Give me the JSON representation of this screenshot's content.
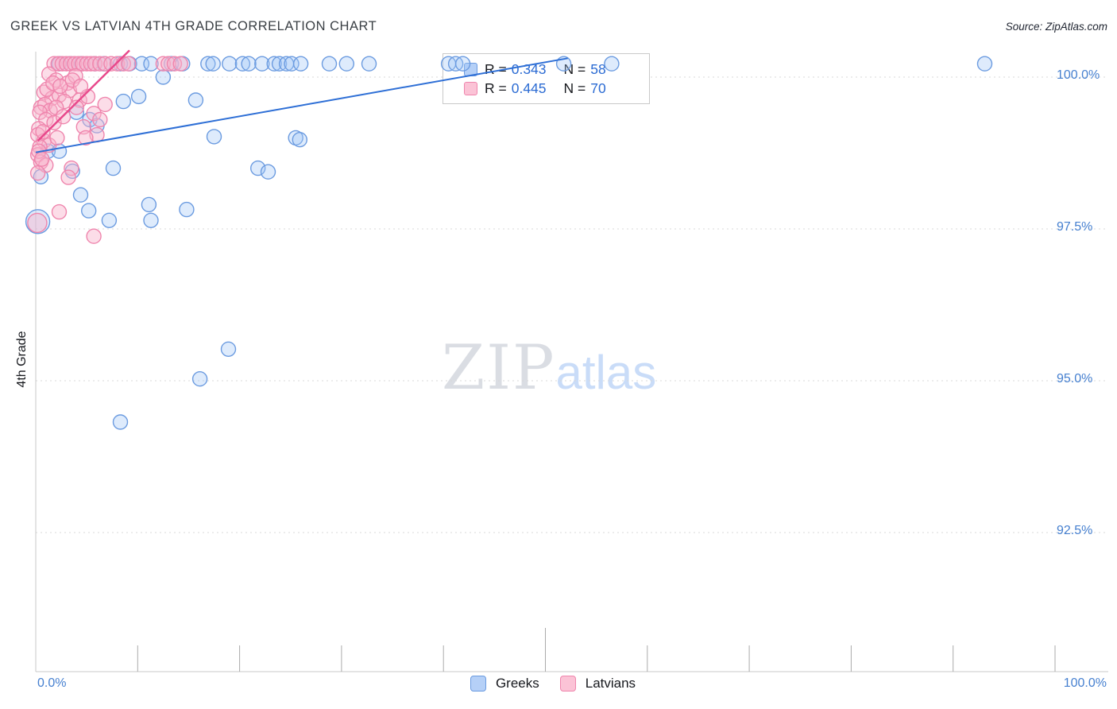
{
  "title": "GREEK VS LATVIAN 4TH GRADE CORRELATION CHART",
  "source": "Source: ZipAtlas.com",
  "y_axis_label": "4th Grade",
  "watermark": {
    "zip": "ZIP",
    "atlas": "atlas"
  },
  "x_axis": {
    "min_label": "0.0%",
    "max_label": "100.0%"
  },
  "y_ticks": [
    {
      "label": "100.0%",
      "value": 100.0
    },
    {
      "label": "97.5%",
      "value": 97.5
    },
    {
      "label": "95.0%",
      "value": 95.0
    },
    {
      "label": "92.5%",
      "value": 92.5
    }
  ],
  "legend_box": {
    "rows": [
      {
        "series": "Greeks",
        "r_label": "R = ",
        "r_value": "0.343",
        "n_label": "N = ",
        "n_value": "58"
      },
      {
        "series": "Latvians",
        "r_label": "R = ",
        "r_value": "0.445",
        "n_label": "N = ",
        "n_value": "70"
      }
    ]
  },
  "bottom_legend": [
    {
      "label": "Greeks"
    },
    {
      "label": "Latvians"
    }
  ],
  "colors": {
    "greek_stroke": "#6b9be0",
    "greek_fill": "rgba(161,197,245,0.35)",
    "greek_trend": "#2e6fd6",
    "latvian_stroke": "#ef85ad",
    "latvian_fill": "rgba(249,180,205,0.45)",
    "latvian_trend": "#e8498c",
    "axis": "#c8c8c8",
    "grid": "#d8d8d8",
    "tick": "#aaaaaa",
    "tick_label": "#4680d0"
  },
  "chart_data": {
    "type": "scatter",
    "title": "GREEK VS LATVIAN 4TH GRADE CORRELATION CHART",
    "xlabel": "",
    "ylabel": "4th Grade",
    "xlim": [
      0,
      105
    ],
    "ylim": [
      90.2,
      100.45
    ],
    "x_tick_values": [
      10,
      20,
      30,
      40,
      50,
      60,
      70,
      80,
      90,
      100
    ],
    "grid": "horizontal-dotted",
    "legend_position": "bottom-center",
    "series": [
      {
        "name": "Greeks",
        "R": 0.343,
        "N": 58,
        "points": [
          [
            2.3,
            100.22
          ],
          [
            3.4,
            100.22
          ],
          [
            4.5,
            100.22
          ],
          [
            5.8,
            100.22
          ],
          [
            6.7,
            100.22
          ],
          [
            8.3,
            100.22
          ],
          [
            9.2,
            100.22
          ],
          [
            10.4,
            100.22
          ],
          [
            11.3,
            100.22
          ],
          [
            13.3,
            100.22
          ],
          [
            14.4,
            100.22
          ],
          [
            16.9,
            100.22
          ],
          [
            17.4,
            100.22
          ],
          [
            19.0,
            100.22
          ],
          [
            20.3,
            100.22
          ],
          [
            20.9,
            100.22
          ],
          [
            22.2,
            100.22
          ],
          [
            23.4,
            100.22
          ],
          [
            23.9,
            100.22
          ],
          [
            24.6,
            100.22
          ],
          [
            25.1,
            100.22
          ],
          [
            26.0,
            100.22
          ],
          [
            28.8,
            100.22
          ],
          [
            30.5,
            100.22
          ],
          [
            32.7,
            100.22
          ],
          [
            40.5,
            100.22
          ],
          [
            41.2,
            100.22
          ],
          [
            41.9,
            100.22
          ],
          [
            51.8,
            100.22
          ],
          [
            56.5,
            100.22
          ],
          [
            93.1,
            100.22
          ],
          [
            12.5,
            100.0
          ],
          [
            15.7,
            99.62
          ],
          [
            4.0,
            99.42
          ],
          [
            5.3,
            99.3
          ],
          [
            6.0,
            99.2
          ],
          [
            8.6,
            99.6
          ],
          [
            10.1,
            99.68
          ],
          [
            17.5,
            99.02
          ],
          [
            25.5,
            99.0
          ],
          [
            25.9,
            98.97
          ],
          [
            1.2,
            98.78
          ],
          [
            2.3,
            98.78
          ],
          [
            7.6,
            98.5
          ],
          [
            3.6,
            98.45
          ],
          [
            21.8,
            98.5
          ],
          [
            22.8,
            98.44
          ],
          [
            0.5,
            98.36
          ],
          [
            4.4,
            98.06
          ],
          [
            5.2,
            97.8
          ],
          [
            11.1,
            97.9
          ],
          [
            11.3,
            97.64
          ],
          [
            7.2,
            97.64
          ],
          [
            14.8,
            97.82
          ],
          [
            0.2,
            97.62,
            15
          ],
          [
            18.9,
            95.52
          ],
          [
            16.1,
            95.03
          ],
          [
            8.3,
            94.32
          ]
        ],
        "trend_line": {
          "x1": 0,
          "y1": 98.76,
          "x2": 52.2,
          "y2": 100.31
        }
      },
      {
        "name": "Latvians",
        "R": 0.445,
        "N": 70,
        "points": [
          [
            1.8,
            100.22
          ],
          [
            2.2,
            100.22
          ],
          [
            2.6,
            100.22
          ],
          [
            3.0,
            100.22
          ],
          [
            3.4,
            100.22
          ],
          [
            3.8,
            100.22
          ],
          [
            4.2,
            100.22
          ],
          [
            4.6,
            100.22
          ],
          [
            5.0,
            100.22
          ],
          [
            5.4,
            100.22
          ],
          [
            5.8,
            100.22
          ],
          [
            6.3,
            100.22
          ],
          [
            6.8,
            100.22
          ],
          [
            7.4,
            100.22
          ],
          [
            8.0,
            100.22
          ],
          [
            8.6,
            100.22
          ],
          [
            9.1,
            100.22
          ],
          [
            12.5,
            100.22
          ],
          [
            13.0,
            100.22
          ],
          [
            13.6,
            100.22
          ],
          [
            14.2,
            100.22
          ],
          [
            1.3,
            100.05
          ],
          [
            2.0,
            99.95
          ],
          [
            3.1,
            99.9
          ],
          [
            3.9,
            100.02
          ],
          [
            0.8,
            99.75
          ],
          [
            1.6,
            99.65
          ],
          [
            2.3,
            99.7
          ],
          [
            3.3,
            99.78
          ],
          [
            4.3,
            99.62
          ],
          [
            5.1,
            99.68
          ],
          [
            1.1,
            99.8
          ],
          [
            1.7,
            99.9
          ],
          [
            2.4,
            99.85
          ],
          [
            2.8,
            99.6
          ],
          [
            3.6,
            99.95
          ],
          [
            4.4,
            99.85
          ],
          [
            0.5,
            99.5
          ],
          [
            0.9,
            99.55
          ],
          [
            1.4,
            99.45
          ],
          [
            2.0,
            99.5
          ],
          [
            4.0,
            99.5
          ],
          [
            6.8,
            99.55
          ],
          [
            0.4,
            99.42
          ],
          [
            1.0,
            99.3
          ],
          [
            1.8,
            99.25
          ],
          [
            2.7,
            99.35
          ],
          [
            4.7,
            99.18
          ],
          [
            5.7,
            99.4
          ],
          [
            6.3,
            99.3
          ],
          [
            0.3,
            99.15
          ],
          [
            0.2,
            99.05
          ],
          [
            0.8,
            98.95
          ],
          [
            1.3,
            98.88
          ],
          [
            2.1,
            99.0
          ],
          [
            0.4,
            98.85
          ],
          [
            6.0,
            99.05
          ],
          [
            0.7,
            99.1
          ],
          [
            4.9,
            99.0
          ],
          [
            0.2,
            98.72
          ],
          [
            0.5,
            98.6
          ],
          [
            1.0,
            98.55
          ],
          [
            3.5,
            98.5
          ],
          [
            0.3,
            98.78
          ],
          [
            0.6,
            98.65
          ],
          [
            3.2,
            98.35
          ],
          [
            2.3,
            97.78
          ],
          [
            5.7,
            97.38
          ],
          [
            0.2,
            98.42
          ],
          [
            0.15,
            97.6,
            12
          ]
        ],
        "trend_line": {
          "x1": 0.2,
          "y1": 98.95,
          "x2": 9.2,
          "y2": 100.44
        }
      }
    ]
  }
}
